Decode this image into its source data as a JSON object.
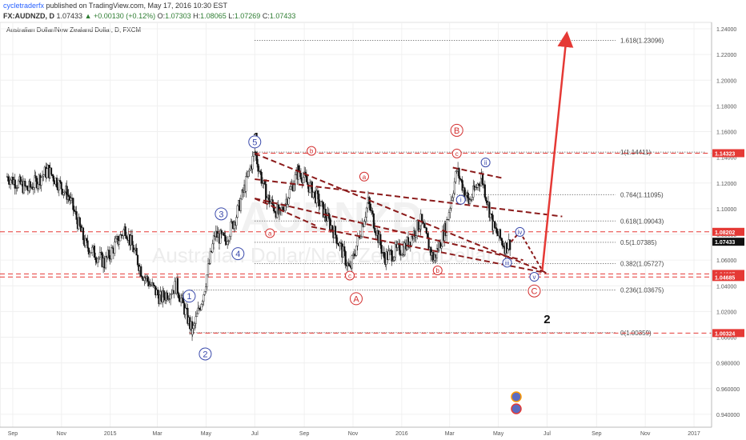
{
  "header": {
    "author": "cycletraderfx",
    "published": "published on TradingView.com, May 17, 2016 10:30 EST",
    "symbol": "FX:AUDNZD, D",
    "last": "1.07433",
    "change": "+0.00130 (+0.12%)",
    "o_label": "O:",
    "o": "1.07303",
    "h_label": "H:",
    "h": "1.08065",
    "l_label": "L:",
    "l": "1.07269",
    "c_label": "C:",
    "c": "1.07433"
  },
  "chart_data": {
    "type": "candlestick",
    "title": "Australian Dollar/New Zealand Dollar, D, FXCM",
    "watermark_symbol": "AUDNZD",
    "watermark_name": "Australian Dollar/New Zealand Dollar",
    "x_ticks": [
      "Sep",
      "Nov",
      "2015",
      "Mar",
      "May",
      "Jul",
      "Sep",
      "Nov",
      "2016",
      "Mar",
      "May",
      "Jul",
      "Sep",
      "Nov",
      "2017"
    ],
    "ylim": [
      0.93,
      1.245
    ],
    "y_ticks": [
      "1.24000",
      "1.22000",
      "1.20000",
      "1.18000",
      "1.16000",
      "1.14000",
      "1.12000",
      "1.10000",
      "1.08000",
      "1.06000",
      "1.04000",
      "1.02000",
      "1.00000",
      "0.980000",
      "0.960000",
      "0.940000"
    ],
    "y_tick_values": [
      1.24,
      1.22,
      1.2,
      1.18,
      1.16,
      1.14,
      1.12,
      1.1,
      1.08,
      1.06,
      1.04,
      1.02,
      1.0,
      0.98,
      0.96,
      0.94
    ],
    "price_path": [
      {
        "date": "2014-08-25",
        "close": 1.125
      },
      {
        "date": "2014-09-20",
        "close": 1.115
      },
      {
        "date": "2014-10-15",
        "close": 1.13
      },
      {
        "date": "2014-11-10",
        "close": 1.11
      },
      {
        "date": "2014-12-01",
        "close": 1.072
      },
      {
        "date": "2014-12-25",
        "close": 1.058
      },
      {
        "date": "2015-01-20",
        "close": 1.085
      },
      {
        "date": "2015-02-10",
        "close": 1.05
      },
      {
        "date": "2015-03-05",
        "close": 1.03
      },
      {
        "date": "2015-03-25",
        "close": 1.04
      },
      {
        "date": "2015-04-14",
        "close": 1.00359
      },
      {
        "date": "2015-04-28",
        "close": 1.035
      },
      {
        "date": "2015-05-12",
        "close": 1.08
      },
      {
        "date": "2015-05-25",
        "close": 1.075
      },
      {
        "date": "2015-06-08",
        "close": 1.095
      },
      {
        "date": "2015-06-20",
        "close": 1.12
      },
      {
        "date": "2015-07-01",
        "close": 1.14411
      },
      {
        "date": "2015-07-15",
        "close": 1.11
      },
      {
        "date": "2015-08-01",
        "close": 1.095
      },
      {
        "date": "2015-08-25",
        "close": 1.13
      },
      {
        "date": "2015-09-15",
        "close": 1.11
      },
      {
        "date": "2015-10-10",
        "close": 1.08
      },
      {
        "date": "2015-10-28",
        "close": 1.052
      },
      {
        "date": "2015-11-20",
        "close": 1.105
      },
      {
        "date": "2015-12-10",
        "close": 1.062
      },
      {
        "date": "2016-01-05",
        "close": 1.07
      },
      {
        "date": "2016-01-25",
        "close": 1.09
      },
      {
        "date": "2016-02-10",
        "close": 1.06
      },
      {
        "date": "2016-02-25",
        "close": 1.085
      },
      {
        "date": "2016-03-10",
        "close": 1.13
      },
      {
        "date": "2016-03-25",
        "close": 1.105
      },
      {
        "date": "2016-04-10",
        "close": 1.125
      },
      {
        "date": "2016-04-25",
        "close": 1.085
      },
      {
        "date": "2016-05-10",
        "close": 1.07
      },
      {
        "date": "2016-05-17",
        "close": 1.07433
      }
    ],
    "fib_levels": [
      {
        "label": "1.618(1.23096)",
        "value": 1.23096
      },
      {
        "label": "1(1.14411)",
        "value": 1.14411
      },
      {
        "label": "0.764(1.11095)",
        "value": 1.11095
      },
      {
        "label": "0.618(1.09043)",
        "value": 1.09043
      },
      {
        "label": "0.5(1.07385)",
        "value": 1.07385
      },
      {
        "label": "0.382(1.05727)",
        "value": 1.05727
      },
      {
        "label": "0.236(1.03675)",
        "value": 1.03675
      },
      {
        "label": "0(1.00359)",
        "value": 1.00359
      }
    ],
    "price_badges": [
      {
        "label": "1.14323",
        "value": 1.14323,
        "color": "#e53935"
      },
      {
        "label": "1.08202",
        "value": 1.08202,
        "color": "#e53935"
      },
      {
        "label": "1.07433",
        "value": 1.07433,
        "color": "#111111"
      },
      {
        "label": "1.04927",
        "value": 1.04927,
        "color": "#e53935"
      },
      {
        "label": "1.04685",
        "value": 1.04685,
        "color": "#e53935"
      },
      {
        "label": "1.00324",
        "value": 1.00324,
        "color": "#e53935"
      }
    ],
    "red_lines": [
      1.14323,
      1.08202,
      1.04927,
      1.04685,
      1.00324
    ],
    "wave_labels": [
      {
        "text": "1",
        "date": "2015-07-03",
        "price": 1.156,
        "color": "#111111",
        "style": "bold"
      },
      {
        "text": "5",
        "date": "2015-07-01",
        "price": 1.152,
        "color": "#3949ab",
        "style": "circle"
      },
      {
        "text": "3",
        "date": "2015-05-20",
        "price": 1.096,
        "color": "#3949ab",
        "style": "circle"
      },
      {
        "text": "4",
        "date": "2015-06-10",
        "price": 1.065,
        "color": "#3949ab",
        "style": "circle"
      },
      {
        "text": "1",
        "date": "2015-04-10",
        "price": 1.032,
        "color": "#3949ab",
        "style": "circle"
      },
      {
        "text": "2",
        "date": "2015-04-30",
        "price": 0.987,
        "color": "#3949ab",
        "style": "circle"
      },
      {
        "text": "a",
        "date": "2015-07-20",
        "price": 1.081,
        "color": "#d32f2f",
        "style": "circle-small"
      },
      {
        "text": "b",
        "date": "2015-09-10",
        "price": 1.145,
        "color": "#d32f2f",
        "style": "circle-small"
      },
      {
        "text": "c",
        "date": "2015-10-28",
        "price": 1.048,
        "color": "#d32f2f",
        "style": "circle-small"
      },
      {
        "text": "a",
        "date": "2015-11-15",
        "price": 1.125,
        "color": "#d32f2f",
        "style": "circle-small"
      },
      {
        "text": "b",
        "date": "2016-02-15",
        "price": 1.052,
        "color": "#d32f2f",
        "style": "circle-small"
      },
      {
        "text": "c",
        "date": "2016-03-10",
        "price": 1.143,
        "color": "#d32f2f",
        "style": "circle-small"
      },
      {
        "text": "A",
        "date": "2015-11-05",
        "price": 1.03,
        "color": "#d32f2f",
        "style": "circle"
      },
      {
        "text": "B",
        "date": "2016-03-10",
        "price": 1.161,
        "color": "#d32f2f",
        "style": "circle"
      },
      {
        "text": "C",
        "date": "2016-06-15",
        "price": 1.036,
        "color": "#d32f2f",
        "style": "circle"
      },
      {
        "text": "i",
        "date": "2016-03-15",
        "price": 1.107,
        "color": "#3949ab",
        "style": "circle-small"
      },
      {
        "text": "ii",
        "date": "2016-04-15",
        "price": 1.136,
        "color": "#3949ab",
        "style": "circle-small"
      },
      {
        "text": "iii",
        "date": "2016-05-12",
        "price": 1.058,
        "color": "#3949ab",
        "style": "circle-small"
      },
      {
        "text": "iv",
        "date": "2016-05-28",
        "price": 1.082,
        "color": "#3949ab",
        "style": "circle-small"
      },
      {
        "text": "v",
        "date": "2016-06-15",
        "price": 1.047,
        "color": "#3949ab",
        "style": "circle-small"
      },
      {
        "text": "2",
        "date": "2016-07-01",
        "price": 1.014,
        "color": "#111111",
        "style": "bold"
      }
    ],
    "trendlines": [
      {
        "from": [
          "2015-07-01",
          1.143
        ],
        "to": [
          "2016-07-01",
          1.05
        ]
      },
      {
        "from": [
          "2015-07-01",
          1.123
        ],
        "to": [
          "2016-07-20",
          1.094
        ]
      },
      {
        "from": [
          "2015-07-01",
          1.108
        ],
        "to": [
          "2015-09-15",
          1.087
        ]
      },
      {
        "from": [
          "2015-07-01",
          1.108
        ],
        "to": [
          "2016-06-01",
          1.06
        ]
      },
      {
        "from": [
          "2016-03-05",
          1.132
        ],
        "to": [
          "2016-05-05",
          1.124
        ]
      },
      {
        "from": [
          "2015-09-10",
          1.086
        ],
        "to": [
          "2016-06-30",
          1.05
        ]
      }
    ],
    "projection": [
      {
        "date": "2016-05-17",
        "price": 1.07433
      },
      {
        "date": "2016-05-28",
        "price": 1.082
      },
      {
        "date": "2016-06-25",
        "price": 1.052
      },
      {
        "date": "2016-07-25",
        "price": 1.232
      }
    ]
  }
}
